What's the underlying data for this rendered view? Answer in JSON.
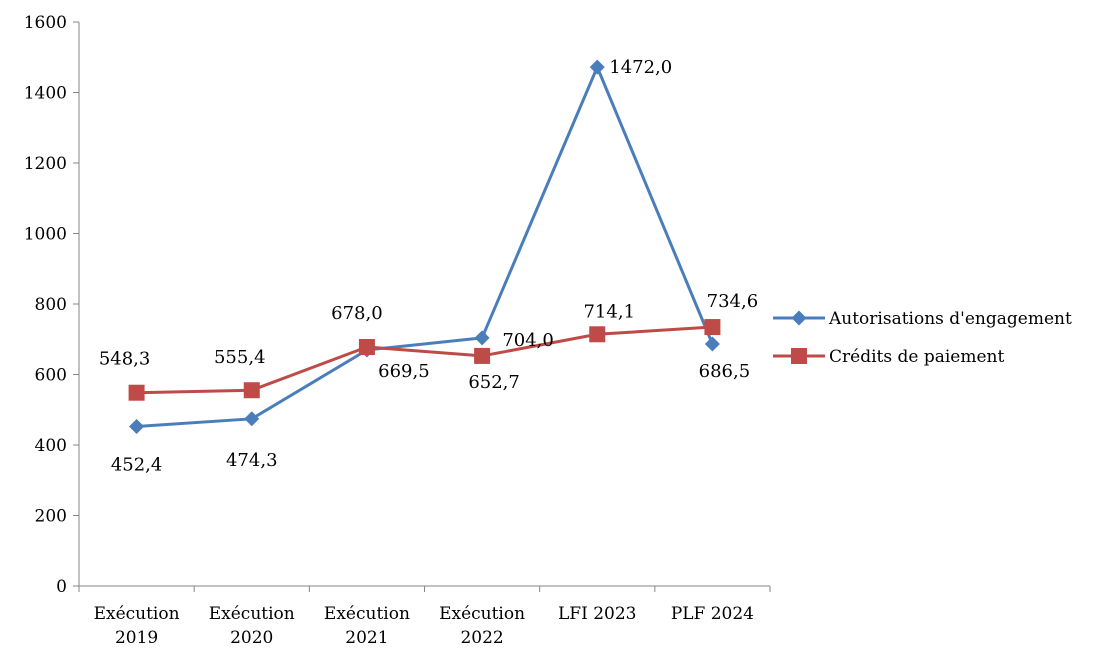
{
  "chart_data": {
    "type": "line",
    "title": "",
    "xlabel": "",
    "ylabel": "",
    "ylim": [
      0,
      1600
    ],
    "yticks": [
      0,
      200,
      400,
      600,
      800,
      1000,
      1200,
      1400,
      1600
    ],
    "categories": [
      [
        "Exécution",
        "2019"
      ],
      [
        "Exécution",
        "2020"
      ],
      [
        "Exécution",
        "2021"
      ],
      [
        "Exécution",
        "2022"
      ],
      [
        "LFI 2023"
      ],
      [
        "PLF 2024"
      ]
    ],
    "legend_position": "right",
    "grid": false,
    "series": [
      {
        "name": "Autorisations d'engagement",
        "color": "#4a7ebb",
        "marker": "diamond",
        "values": [
          452.4,
          474.3,
          669.5,
          704.0,
          1472.0,
          686.5
        ],
        "labels": [
          "452,4",
          "474,3",
          "669,5",
          "704,0",
          "1472,0",
          "686,5"
        ]
      },
      {
        "name": "Crédits de paiement",
        "color": "#be4b48",
        "marker": "square",
        "values": [
          548.3,
          555.4,
          678.0,
          652.7,
          714.1,
          734.6
        ],
        "labels": [
          "548,3",
          "555,4",
          "678,0",
          "652,7",
          "714,1",
          "734,6"
        ]
      }
    ]
  }
}
